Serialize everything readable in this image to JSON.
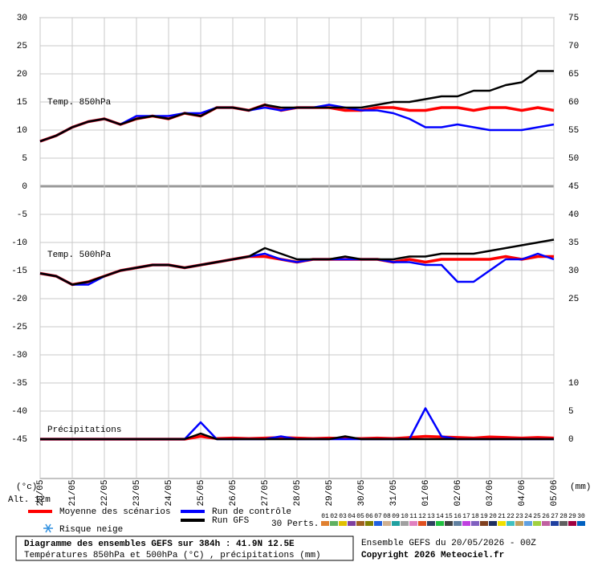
{
  "chart_data": {
    "type": "line",
    "xlim": [
      0,
      384
    ],
    "xticks": [
      {
        "value": 0,
        "label": "20/05"
      },
      {
        "value": 24,
        "label": "21/05"
      },
      {
        "value": 48,
        "label": "22/05"
      },
      {
        "value": 72,
        "label": "23/05"
      },
      {
        "value": 96,
        "label": "24/05"
      },
      {
        "value": 120,
        "label": "25/05"
      },
      {
        "value": 144,
        "label": "26/05"
      },
      {
        "value": 168,
        "label": "27/05"
      },
      {
        "value": 192,
        "label": "28/05"
      },
      {
        "value": 216,
        "label": "29/05"
      },
      {
        "value": 240,
        "label": "30/05"
      },
      {
        "value": 264,
        "label": "31/05"
      },
      {
        "value": 288,
        "label": "01/06"
      },
      {
        "value": 312,
        "label": "02/06"
      },
      {
        "value": 336,
        "label": "03/06"
      },
      {
        "value": 360,
        "label": "04/06"
      },
      {
        "value": 384,
        "label": "05/06"
      }
    ],
    "ylim": [
      -52,
      30
    ],
    "yticks": [
      30,
      25,
      20,
      15,
      10,
      5,
      0,
      -5,
      -10,
      -15,
      -20,
      -25,
      -30,
      -35,
      -40,
      -45
    ],
    "y2lim": [
      -7,
      75
    ],
    "y2ticks": [
      75,
      70,
      65,
      60,
      55,
      50,
      45,
      40,
      35,
      30,
      25,
      10,
      5,
      0
    ],
    "y_unit_label": "(°c)",
    "y2_unit_label": "(mm)",
    "altitude_label": "Alt. 12m",
    "grid": true,
    "panel_labels": [
      "Temp. 850hPa",
      "Temp. 500hPa",
      "Précipitations"
    ],
    "x": [
      0,
      12,
      24,
      36,
      48,
      60,
      72,
      84,
      96,
      108,
      120,
      132,
      144,
      156,
      168,
      180,
      192,
      204,
      216,
      228,
      240,
      252,
      264,
      276,
      288,
      300,
      312,
      324,
      336,
      348,
      360,
      372,
      384
    ],
    "series": [
      {
        "name": "Moyenne des scénarios",
        "color": "#ff0000",
        "t850": [
          8,
          9,
          10.5,
          11.5,
          12,
          11,
          12,
          12.5,
          12,
          13,
          12.5,
          14,
          14,
          13.5,
          14.5,
          13.5,
          14,
          14,
          14,
          13.5,
          13.5,
          14,
          14,
          13.5,
          13.5,
          14,
          14,
          13.5,
          14,
          14,
          13.5,
          14,
          13.5
        ],
        "t500": [
          -15.5,
          -16,
          -17.5,
          -17,
          -16,
          -15,
          -14.5,
          -14,
          -14,
          -14.5,
          -14,
          -13.5,
          -13,
          -12.5,
          -12.5,
          -13,
          -13.5,
          -13,
          -13,
          -13,
          -13,
          -13,
          -13.5,
          -13,
          -13.5,
          -13,
          -13,
          -13,
          -13,
          -12.5,
          -13,
          -12.5,
          -12.5
        ],
        "precip": [
          0,
          0,
          0,
          0,
          0,
          0,
          0,
          0,
          0,
          0,
          0.5,
          0.1,
          0.2,
          0.1,
          0.2,
          0.3,
          0.2,
          0.1,
          0.2,
          0.1,
          0.1,
          0.2,
          0.1,
          0.3,
          0.5,
          0.4,
          0.3,
          0.2,
          0.4,
          0.3,
          0.2,
          0.3,
          0.2
        ]
      },
      {
        "name": "Run de contrôle",
        "color": "#0000ff",
        "t850": [
          8,
          9,
          10.5,
          11.5,
          12,
          11,
          12.5,
          12.5,
          12.5,
          13,
          13,
          14,
          14,
          13.5,
          14,
          13.5,
          14,
          14,
          14.5,
          14,
          13.5,
          13.5,
          13,
          12,
          10.5,
          10.5,
          11,
          10.5,
          10,
          10,
          10,
          10.5,
          11
        ],
        "t500": [
          -15.5,
          -16,
          -17.5,
          -17.5,
          -16,
          -15,
          -14.5,
          -14,
          -14,
          -14.5,
          -14,
          -13.5,
          -13,
          -12.5,
          -12,
          -13,
          -13.5,
          -13,
          -13,
          -13,
          -13,
          -13,
          -13.5,
          -13.5,
          -14,
          -14,
          -17,
          -17,
          -15,
          -13,
          -13,
          -12,
          -13
        ],
        "precip": [
          0,
          0,
          0,
          0,
          0,
          0,
          0,
          0,
          0,
          0,
          3,
          0,
          0,
          0,
          0,
          0.5,
          0,
          0,
          0,
          0,
          0,
          0,
          0,
          0,
          5.5,
          0.5,
          0,
          0,
          0,
          0,
          0,
          0,
          0
        ]
      },
      {
        "name": "Run GFS",
        "color": "#000000",
        "t850": [
          8,
          9,
          10.5,
          11.5,
          12,
          11,
          12,
          12.5,
          12,
          13,
          12.5,
          14,
          14,
          13.5,
          14.5,
          14,
          14,
          14,
          14,
          14,
          14,
          14.5,
          15,
          15,
          15.5,
          16,
          16,
          17,
          17,
          18,
          18.5,
          20.5,
          20.5
        ],
        "t500": [
          -15.5,
          -16,
          -17.5,
          -17,
          -16,
          -15,
          -14.5,
          -14,
          -14,
          -14.5,
          -14,
          -13.5,
          -13,
          -12.5,
          -11,
          -12,
          -13,
          -13,
          -13,
          -12.5,
          -13,
          -13,
          -13,
          -12.5,
          -12.5,
          -12,
          -12,
          -12,
          -11.5,
          -11,
          -10.5,
          -10,
          -9.5
        ],
        "precip": [
          0,
          0,
          0,
          0,
          0,
          0,
          0,
          0,
          0,
          0,
          1,
          0,
          0,
          0,
          0,
          0,
          0,
          0,
          0,
          0.5,
          0,
          0,
          0,
          0,
          0,
          0,
          0,
          0,
          0,
          0,
          0,
          0,
          0
        ]
      }
    ],
    "snow_label": "Risque neige",
    "perturbations": {
      "title": "30 Perts.",
      "labels": [
        "01",
        "02",
        "03",
        "04",
        "05",
        "06",
        "07",
        "08",
        "09",
        "10",
        "11",
        "12",
        "13",
        "14",
        "15",
        "16",
        "17",
        "18",
        "19",
        "20",
        "21",
        "22",
        "23",
        "24",
        "25",
        "26",
        "27",
        "28",
        "29",
        "30"
      ],
      "colors": [
        "#e08030",
        "#60b060",
        "#e0c000",
        "#8040a0",
        "#a06020",
        "#808000",
        "#2060e0",
        "#d0b090",
        "#20a0a0",
        "#a0a0a0",
        "#e080c0",
        "#e05020",
        "#304060",
        "#20c040",
        "#404040",
        "#6080a0",
        "#c040e0",
        "#8060c0",
        "#804020",
        "#203060",
        "#f0e000",
        "#40c0c0",
        "#c0a060",
        "#60a0e0",
        "#a0d040",
        "#c060a0",
        "#2040a0",
        "#606060",
        "#a00040",
        "#0060c0"
      ]
    },
    "footer": {
      "title": "Diagramme des ensembles GEFS sur 384h : 41.9N 12.5E",
      "subtitle": "Températures 850hPa et 500hPa (°C) , précipitations (mm)",
      "run": "Ensemble GEFS du 20/05/2026 - 00Z",
      "copyright": "Copyright 2026 Meteociel.fr"
    }
  }
}
